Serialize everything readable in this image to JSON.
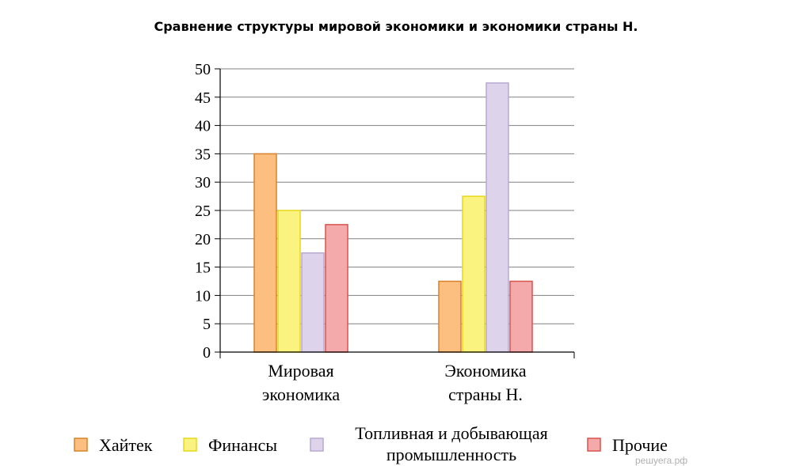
{
  "chart_data": {
    "type": "bar",
    "title": "Сравнение структуры мировой экономики и экономики страны Н.",
    "categories": [
      [
        "Мировая",
        "экономика"
      ],
      [
        "Экономика",
        "страны Н."
      ]
    ],
    "series": [
      {
        "name": "Хайтек",
        "values": [
          35,
          12.5
        ],
        "fill": "#fdbf80",
        "stroke": "#d9822b"
      },
      {
        "name": "Финансы",
        "values": [
          25,
          27.5
        ],
        "fill": "#fbf37f",
        "stroke": "#e8d71a"
      },
      {
        "name": "Топливная и добывающая промышленность",
        "legend_lines": [
          "Топливная и добывающая",
          "промышленность"
        ],
        "values": [
          17.5,
          47.5
        ],
        "fill": "#ddd3ea",
        "stroke": "#b8a9d2"
      },
      {
        "name": "Прочие",
        "values": [
          22.5,
          12.5
        ],
        "fill": "#f4aaaa",
        "stroke": "#d9534f"
      }
    ],
    "ylim": [
      0,
      50
    ],
    "yticks": [
      0,
      5,
      10,
      15,
      20,
      25,
      30,
      35,
      40,
      45,
      50
    ],
    "grid": true,
    "legend_position": "bottom"
  },
  "watermark": "решуега.рф"
}
